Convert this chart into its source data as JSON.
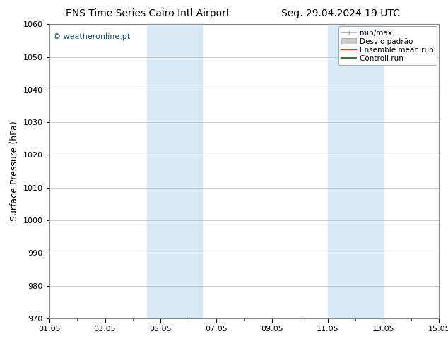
{
  "title_left": "ENS Time Series Cairo Intl Airport",
  "title_right": "Seg. 29.04.2024 19 UTC",
  "ylabel": "Surface Pressure (hPa)",
  "ylim": [
    970,
    1060
  ],
  "yticks": [
    970,
    980,
    990,
    1000,
    1010,
    1020,
    1030,
    1040,
    1050,
    1060
  ],
  "xlim": [
    0,
    14
  ],
  "xtick_labels": [
    "01.05",
    "03.05",
    "05.05",
    "07.05",
    "09.05",
    "11.05",
    "13.05",
    "15.05"
  ],
  "xtick_positions": [
    0,
    2,
    4,
    6,
    8,
    10,
    12,
    14
  ],
  "shaded_regions": [
    {
      "start": 3.5,
      "end": 5.5
    },
    {
      "start": 10.0,
      "end": 12.0
    }
  ],
  "shaded_color": "#daeaf6",
  "watermark_text": "© weatheronline.pt",
  "watermark_color": "#1a5276",
  "bg_color": "#ffffff",
  "grid_color": "#bbbbbb",
  "title_fontsize": 10,
  "axis_label_fontsize": 9,
  "tick_fontsize": 8,
  "legend_fontsize": 7.5,
  "figsize": [
    6.34,
    4.9
  ],
  "dpi": 100
}
